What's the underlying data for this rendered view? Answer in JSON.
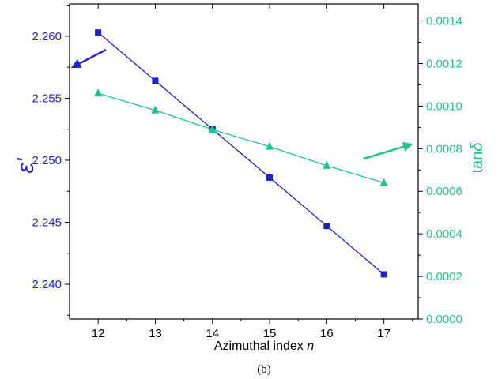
{
  "chart_data": {
    "type": "line",
    "caption": "(b)",
    "xlabel": "Azimuthal index",
    "xlabel_var": "n",
    "ylabel_left": "ε'",
    "ylabel_right_prefix": "tan",
    "ylabel_right_symbol": "δ",
    "x": [
      12,
      13,
      14,
      15,
      16,
      17
    ],
    "xlim": [
      11.5,
      17.6
    ],
    "xticks": [
      "12",
      "13",
      "14",
      "15",
      "16",
      "17"
    ],
    "x_values": [
      12,
      13,
      14,
      15,
      16,
      17
    ],
    "ylim_left": [
      2.2372,
      2.2626
    ],
    "yticks_left": [
      "2.240",
      "2.245",
      "2.250",
      "2.255",
      "2.260"
    ],
    "yticks_left_values": [
      2.24,
      2.245,
      2.25,
      2.255,
      2.26
    ],
    "ylim_right": [
      0.0,
      0.00148
    ],
    "yticks_right": [
      "0.0000",
      "0.0002",
      "0.0004",
      "0.0006",
      "0.0008",
      "0.0010",
      "0.0012",
      "0.0014"
    ],
    "yticks_right_values": [
      0.0,
      0.0002,
      0.0004,
      0.0006,
      0.0008,
      0.001,
      0.0012,
      0.0014
    ],
    "series": [
      {
        "axis": "left",
        "marker": "square",
        "color": "#1f1fd4",
        "values": [
          2.2603,
          2.2564,
          2.2525,
          2.2486,
          2.2447,
          2.2408
        ]
      },
      {
        "axis": "right",
        "marker": "triangle",
        "color": "#1ec789",
        "values": [
          0.00106,
          0.00098,
          0.00089,
          0.00081,
          0.00072,
          0.00064
        ]
      }
    ],
    "left_axis_color": "#2424d8",
    "right_axis_color": "#1ec789",
    "grid": false
  }
}
